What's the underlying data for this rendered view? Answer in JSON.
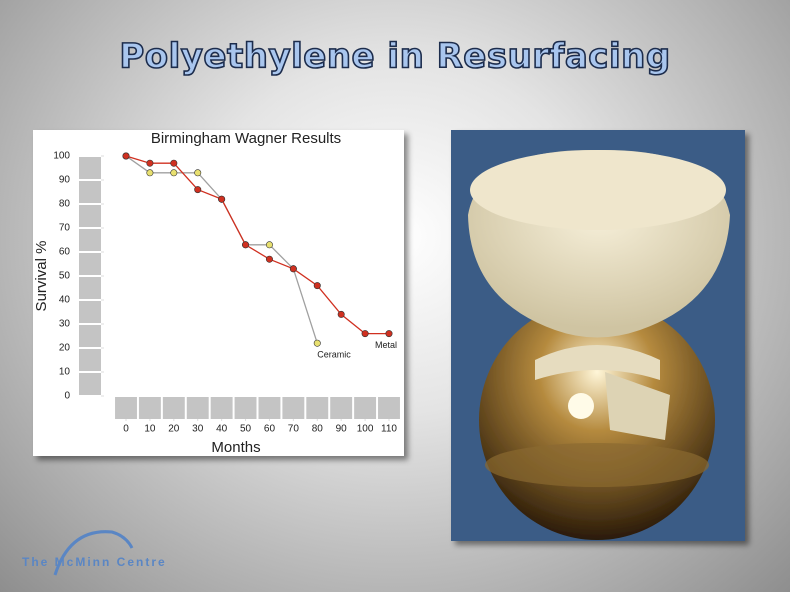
{
  "slide": {
    "title": "Polyethylene in Resurfacing",
    "logo": "The McMinn Centre"
  },
  "chart_data": {
    "type": "line",
    "title": "Birmingham Wagner Results",
    "x_label": "Months",
    "y_label": "Survival %",
    "x": [
      0,
      10,
      20,
      30,
      40,
      50,
      60,
      70,
      80,
      90,
      100,
      110
    ],
    "series": [
      {
        "name": "Ceramic",
        "color": "#a0a0a0",
        "marker_color": "#e8e070",
        "values": [
          100,
          93,
          93,
          93,
          82,
          63,
          63,
          53,
          22,
          null,
          null,
          null
        ]
      },
      {
        "name": "Metal",
        "color": "#d03020",
        "marker_color": "#d03020",
        "values": [
          100,
          97,
          97,
          86,
          82,
          63,
          57,
          53,
          46,
          34,
          26,
          26
        ]
      }
    ],
    "xlim": [
      0,
      110
    ],
    "xticks": [
      0,
      10,
      20,
      30,
      40,
      50,
      60,
      70,
      80,
      90,
      100,
      110
    ],
    "ylim": [
      0,
      100
    ],
    "yticks": [
      0,
      10,
      20,
      30,
      40,
      50,
      60,
      70,
      80,
      90,
      100
    ]
  }
}
